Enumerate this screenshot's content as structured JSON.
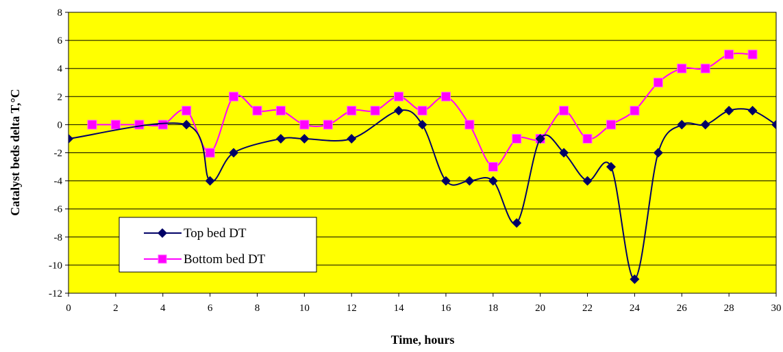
{
  "chart_data": {
    "type": "line",
    "xlabel": "Time, hours",
    "ylabel": "Catalyst beds delta T,°C",
    "xlim": [
      0,
      30
    ],
    "ylim": [
      -12,
      8
    ],
    "x_ticks": [
      "0",
      "2",
      "4",
      "6",
      "8",
      "10",
      "12",
      "14",
      "16",
      "18",
      "20",
      "22",
      "24",
      "26",
      "28",
      "30"
    ],
    "y_ticks": [
      "8",
      "6",
      "4",
      "2",
      "0",
      "-2",
      "-4",
      "-6",
      "-8",
      "-10",
      "-12"
    ],
    "grid": "horizontal",
    "legend_position": "lower-left inside",
    "plot_background": "#FFFF00",
    "series": [
      {
        "name": "Top bed DT",
        "color": "#000066",
        "marker": "diamond",
        "x": [
          0,
          5,
          6,
          7,
          9,
          10,
          12,
          14,
          15,
          16,
          17,
          18,
          19,
          20,
          21,
          22,
          23,
          24,
          25,
          26,
          27,
          28,
          29,
          30
        ],
        "y": [
          -1,
          0,
          -4,
          -2,
          -1,
          -1,
          -1,
          1,
          0,
          -4,
          -4,
          -4,
          -7,
          -1,
          -2,
          -4,
          -3,
          -11,
          -2,
          0,
          0,
          1,
          1,
          0
        ]
      },
      {
        "name": "Bottom bed DT",
        "color": "#FF00FF",
        "marker": "square",
        "x": [
          1,
          2,
          3,
          4,
          5,
          6,
          7,
          8,
          9,
          10,
          11,
          12,
          13,
          14,
          15,
          16,
          17,
          18,
          19,
          20,
          21,
          22,
          23,
          24,
          25,
          26,
          27,
          28,
          29
        ],
        "y": [
          0,
          0,
          0,
          0,
          1,
          -2,
          2,
          1,
          1,
          0,
          0,
          1,
          1,
          2,
          1,
          2,
          0,
          -3,
          -1,
          -1,
          1,
          -1,
          0,
          1,
          3,
          4,
          4,
          5,
          5
        ]
      }
    ]
  }
}
